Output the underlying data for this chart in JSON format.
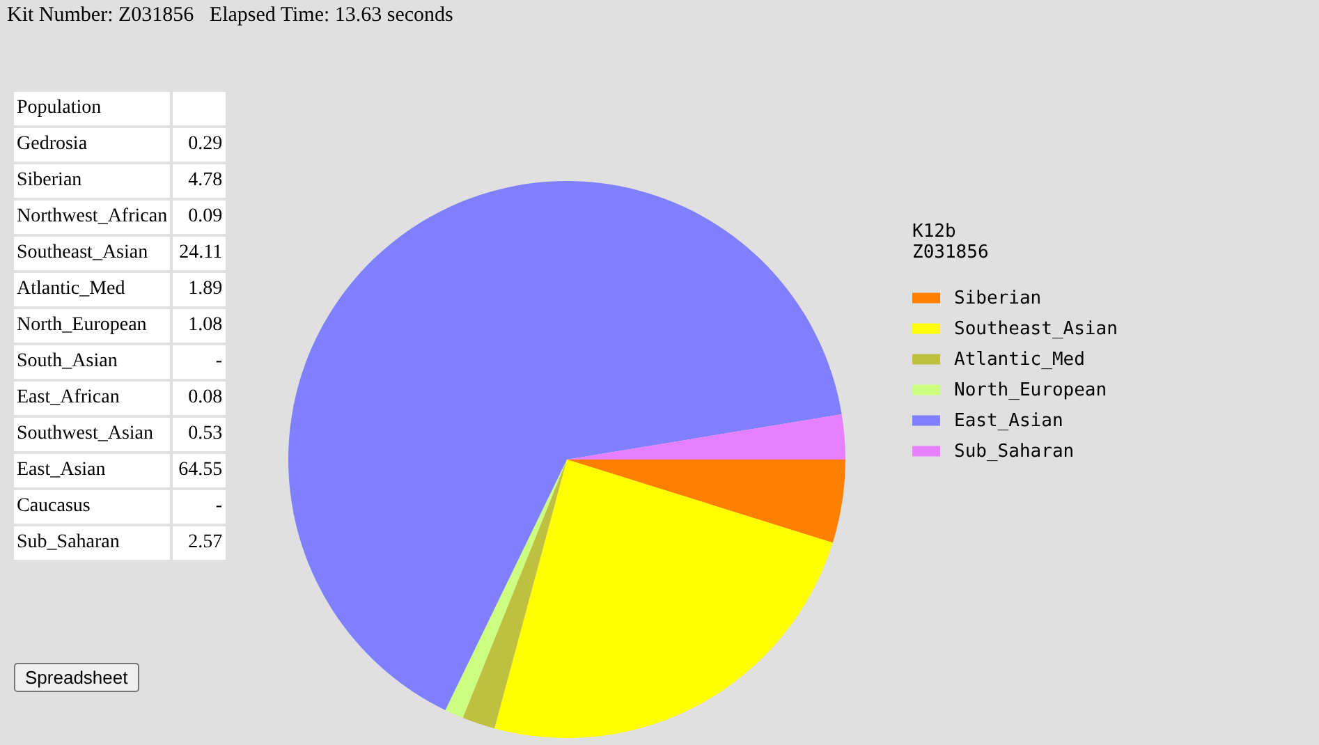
{
  "chart_data": [
    {
      "type": "other",
      "title": "Kit Number: Z031856   Elapsed Time: 13.63 seconds",
      "xlabel": "Population",
      "categories": [
        "Gedrosia",
        "Siberian",
        "Northwest_African",
        "Southeast_Asian",
        "Atlantic_Med",
        "North_European",
        "South_Asian",
        "East_African",
        "Southwest_Asian",
        "East_Asian",
        "Caucasus",
        "Sub_Saharan"
      ],
      "value_labels": [
        "0.29",
        "4.78",
        "0.09",
        "24.11",
        "1.89",
        "1.08",
        "-",
        "0.08",
        "0.53",
        "64.55",
        "-",
        "2.57"
      ],
      "annotations": [
        "Spreadsheet"
      ]
    },
    {
      "type": "pie",
      "legend_title": "K12b\nZ031856",
      "legend": "right",
      "categories": [
        "Siberian",
        "Southeast_Asian",
        "Atlantic_Med",
        "North_European",
        "East_Asian",
        "Sub_Saharan"
      ],
      "values": [
        4.78,
        24.11,
        1.89,
        1.08,
        64.55,
        2.57
      ],
      "colors": [
        "#ff8000",
        "#ffff00",
        "#c0c040",
        "#ccff80",
        "#8080ff",
        "#e680ff"
      ]
    }
  ]
}
